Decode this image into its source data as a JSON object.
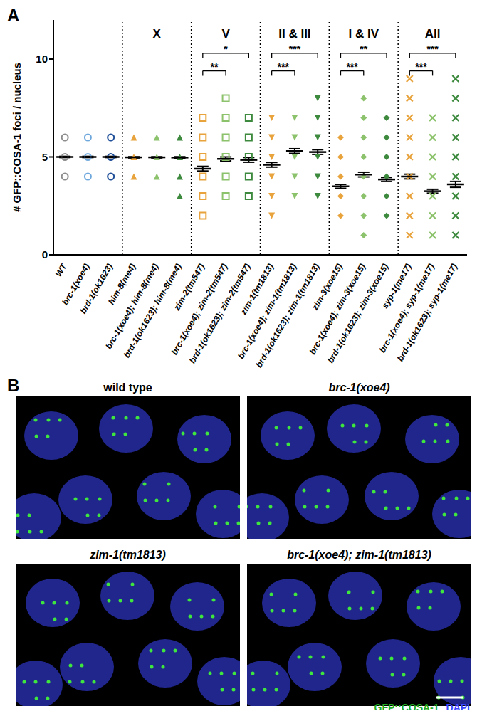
{
  "chart_data": {
    "type": "scatter",
    "panel_label": "A",
    "y_label": "# GFP::COSA-1 foci / nucleus",
    "categories": [
      "WT",
      "brc-1(xoe4)",
      "brd-1(ok1623)",
      "him-8(me4)",
      "brc-1(xoe4); him-8(me4)",
      "brd-1(ok1623); him-8(me4)",
      "zim-2(tm547)",
      "brc-1(xoe4); zim-2(tm547)",
      "brd-1(ok1623); zim-2(tm547)",
      "zim-1(tm1813)",
      "brc-1(xoe4); zim-1(tm1813)",
      "brd-1(ok1623); zim-1(tm1813)",
      "zim-3(xoe15)",
      "brc-1(xoe4); zim-3(xoe15)",
      "brd-1(ok1623); zim-3(xoe15)",
      "syp-1(me17)",
      "brc-1(xoe4); syp-1(me17)",
      "brd-1(ok1623); syp-1(me17)"
    ],
    "values": [
      [
        4,
        5,
        6
      ],
      [
        4,
        5,
        6
      ],
      [
        4,
        5,
        6
      ],
      [
        4,
        5,
        6
      ],
      [
        4,
        5,
        6
      ],
      [
        3,
        4,
        5,
        6
      ],
      [
        2,
        3,
        4,
        5,
        6,
        7
      ],
      [
        3,
        4,
        5,
        6,
        7,
        8
      ],
      [
        3,
        4,
        5,
        6,
        7
      ],
      [
        2,
        3,
        4,
        5,
        6,
        7
      ],
      [
        3,
        4,
        5,
        6,
        7
      ],
      [
        3,
        4,
        5,
        6,
        7,
        8
      ],
      [
        2,
        3,
        4,
        5,
        6
      ],
      [
        1,
        2,
        3,
        4,
        5,
        6,
        7,
        8
      ],
      [
        2,
        3,
        4,
        5,
        6,
        7
      ],
      [
        1,
        2,
        3,
        4,
        5,
        6,
        7,
        8,
        9
      ],
      [
        1,
        2,
        3,
        4,
        5,
        6,
        7
      ],
      [
        1,
        2,
        3,
        4,
        5,
        6,
        7,
        8,
        9
      ]
    ],
    "mean": [
      5.0,
      5.0,
      5.0,
      4.98,
      4.98,
      4.97,
      4.4,
      4.9,
      4.85,
      4.6,
      5.3,
      5.25,
      3.5,
      4.1,
      3.85,
      4.0,
      3.25,
      3.6
    ],
    "sem": [
      0.03,
      0.03,
      0.03,
      0.03,
      0.03,
      0.04,
      0.12,
      0.1,
      0.12,
      0.12,
      0.12,
      0.12,
      0.1,
      0.12,
      0.1,
      0.12,
      0.1,
      0.15
    ],
    "colors": [
      "#8c8c8c",
      "#6fa8dc",
      "#1f4e99",
      "#e8a33d",
      "#8cc26b",
      "#3d8a3e",
      "#e8a33d",
      "#8cc26b",
      "#3d8a3e",
      "#e8a33d",
      "#8cc26b",
      "#3d8a3e",
      "#e8a33d",
      "#8cc26b",
      "#3d8a3e",
      "#e8a33d",
      "#8cc26b",
      "#3d8a3e"
    ],
    "marker": [
      "circle-open",
      "circle-open",
      "circle-open",
      "triangle",
      "triangle",
      "triangle",
      "square-open",
      "square-open",
      "square-open",
      "triangle-down",
      "triangle-down",
      "triangle-down",
      "diamond",
      "diamond",
      "diamond",
      "x",
      "x",
      "x"
    ],
    "groups": [
      {
        "label": "X",
        "start": 3,
        "end": 5
      },
      {
        "label": "V",
        "start": 6,
        "end": 8
      },
      {
        "label": "II & III",
        "start": 9,
        "end": 11
      },
      {
        "label": "I & IV",
        "start": 12,
        "end": 14
      },
      {
        "label": "All",
        "start": 15,
        "end": 17
      }
    ],
    "comparisons": [
      {
        "from": 6,
        "to": 7,
        "label": "**",
        "y": 9.4
      },
      {
        "from": 6,
        "to": 8,
        "label": "*",
        "y": 10.3
      },
      {
        "from": 9,
        "to": 10,
        "label": "***",
        "y": 9.4
      },
      {
        "from": 9,
        "to": 11,
        "label": "***",
        "y": 10.3
      },
      {
        "from": 12,
        "to": 13,
        "label": "***",
        "y": 9.4
      },
      {
        "from": 12,
        "to": 14,
        "label": "**",
        "y": 10.3
      },
      {
        "from": 15,
        "to": 16,
        "label": "***",
        "y": 9.4
      },
      {
        "from": 15,
        "to": 17,
        "label": "***",
        "y": 10.3
      }
    ],
    "ylim": [
      0,
      12
    ],
    "yticks": [
      0,
      5,
      10
    ],
    "grid": false
  },
  "images": {
    "panel_label": "B",
    "titles": [
      "wild type",
      "brc-1(xoe4)",
      "zim-1(tm1813)",
      "brc-1(xoe4); zim-1(tm1813)"
    ],
    "channels": [
      {
        "name": "GFP::COSA-1",
        "color": "#3ee63e"
      },
      {
        "name": "DAPI",
        "color": "#3a46ff"
      }
    ]
  }
}
